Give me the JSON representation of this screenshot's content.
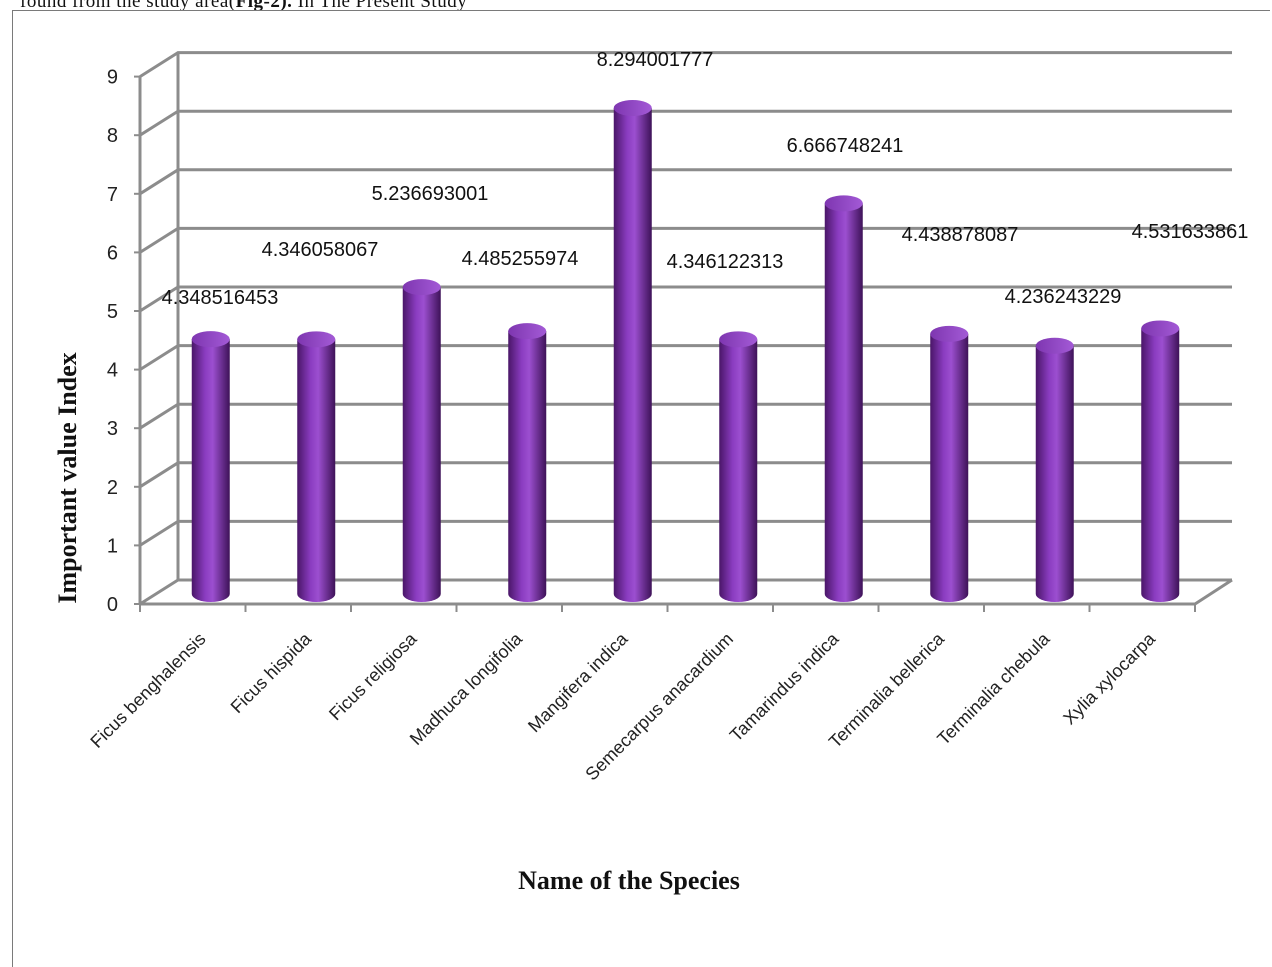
{
  "caption": {
    "prefix": "found from the study area(",
    "figure_ref": "Fig-2).",
    "suffix": " In The Present Study"
  },
  "chart_data": {
    "type": "bar",
    "title": "",
    "xlabel": "Name of the Species",
    "ylabel": "Important value Index",
    "ylim": [
      0,
      9
    ],
    "yticks": [
      0,
      1,
      2,
      3,
      4,
      5,
      6,
      7,
      8,
      9
    ],
    "grid": true,
    "legend": "none",
    "bar_color": "#7b2fa6",
    "categories": [
      "Ficus benghalensis",
      "Ficus hispida",
      "Ficus religiosa",
      "Madhuca  longifolia",
      "Mangifera indica",
      "Semecarpus anacardium",
      "Tamarindus indica",
      "Terminalia bellerica",
      "Terminalia chebula",
      "Xylia xylocarpa"
    ],
    "values": [
      4.348516453,
      4.346058067,
      5.236693001,
      4.485255974,
      8.294001777,
      4.346122313,
      6.666748241,
      4.438878087,
      4.236243229,
      4.531633861
    ],
    "data_labels": [
      "4.348516453",
      "4.346058067",
      "5.236693001",
      "4.485255974",
      "8.294001777",
      "4.346122313",
      "6.666748241",
      "4.438878087",
      "4.236243229",
      "4.531633861"
    ]
  }
}
